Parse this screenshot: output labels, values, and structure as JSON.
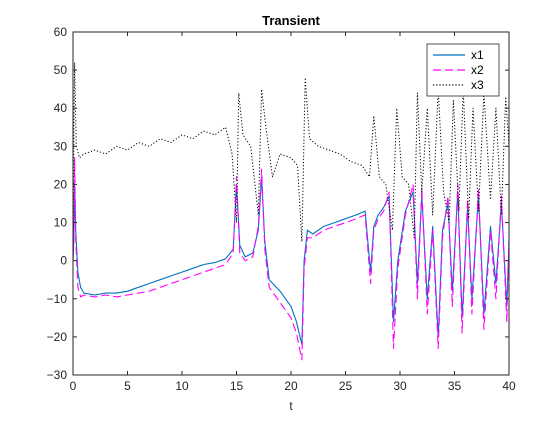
{
  "figure": {
    "background": "#ffffff"
  },
  "chart_data": {
    "type": "line",
    "title": "Transient",
    "xlabel": "t",
    "ylabel": "",
    "xlim": [
      0,
      40
    ],
    "ylim": [
      -30,
      60
    ],
    "xticks": [
      "0",
      "5",
      "10",
      "15",
      "20",
      "25",
      "30",
      "35",
      "40"
    ],
    "yticks": [
      "−30",
      "−20",
      "−10",
      "0",
      "10",
      "20",
      "30",
      "40",
      "50",
      "60"
    ],
    "grid": false,
    "legend_position": "top-right",
    "series": [
      {
        "name": "x1",
        "color": "#0072bd",
        "dash": "solid",
        "points": [
          [
            0.0,
            0
          ],
          [
            0.08,
            6
          ],
          [
            0.15,
            20
          ],
          [
            0.25,
            8
          ],
          [
            0.45,
            -3
          ],
          [
            0.7,
            -7
          ],
          [
            1.0,
            -8.5
          ],
          [
            2,
            -9
          ],
          [
            3,
            -8.5
          ],
          [
            4,
            -8.5
          ],
          [
            5,
            -8
          ],
          [
            6,
            -7
          ],
          [
            7,
            -6
          ],
          [
            8,
            -5
          ],
          [
            9,
            -4
          ],
          [
            10,
            -3
          ],
          [
            11,
            -2
          ],
          [
            12,
            -1
          ],
          [
            13,
            -0.5
          ],
          [
            14,
            0.5
          ],
          [
            14.7,
            3
          ],
          [
            15.0,
            20
          ],
          [
            15.3,
            4
          ],
          [
            15.8,
            1
          ],
          [
            16.5,
            2
          ],
          [
            17.0,
            8
          ],
          [
            17.3,
            22
          ],
          [
            17.6,
            5
          ],
          [
            18.0,
            -5
          ],
          [
            19,
            -8
          ],
          [
            20,
            -12
          ],
          [
            20.5,
            -16
          ],
          [
            21.0,
            -22
          ],
          [
            21.2,
            0
          ],
          [
            21.5,
            8
          ],
          [
            22,
            7
          ],
          [
            23,
            9
          ],
          [
            24,
            10
          ],
          [
            25,
            11
          ],
          [
            26,
            12
          ],
          [
            26.8,
            13
          ],
          [
            27.3,
            -3
          ],
          [
            27.6,
            9
          ],
          [
            28,
            12
          ],
          [
            28.5,
            14
          ],
          [
            29.0,
            17
          ],
          [
            29.4,
            -16
          ],
          [
            29.8,
            0
          ],
          [
            30.5,
            13
          ],
          [
            31.2,
            18
          ],
          [
            31.6,
            -6
          ],
          [
            32.0,
            17
          ],
          [
            32.5,
            -10
          ],
          [
            33.0,
            9
          ],
          [
            33.5,
            -20
          ],
          [
            33.9,
            8
          ],
          [
            34.4,
            15
          ],
          [
            34.8,
            -8
          ],
          [
            35.3,
            18
          ],
          [
            35.7,
            -15
          ],
          [
            36.2,
            14
          ],
          [
            36.6,
            -10
          ],
          [
            37.2,
            17
          ],
          [
            37.7,
            -14
          ],
          [
            38.3,
            9
          ],
          [
            38.8,
            -6
          ],
          [
            39.3,
            15
          ],
          [
            39.8,
            -12
          ],
          [
            40.0,
            5
          ]
        ]
      },
      {
        "name": "x2",
        "color": "#ff00ff",
        "dash": "dashed",
        "points": [
          [
            0.0,
            0
          ],
          [
            0.08,
            8
          ],
          [
            0.15,
            27
          ],
          [
            0.25,
            6
          ],
          [
            0.45,
            -7
          ],
          [
            0.7,
            -9.5
          ],
          [
            1.0,
            -9
          ],
          [
            2,
            -9.5
          ],
          [
            3,
            -9
          ],
          [
            4,
            -9.5
          ],
          [
            5,
            -9
          ],
          [
            6,
            -8.5
          ],
          [
            7,
            -8
          ],
          [
            8,
            -7
          ],
          [
            9,
            -6
          ],
          [
            10,
            -5
          ],
          [
            11,
            -4
          ],
          [
            12,
            -3
          ],
          [
            13,
            -2
          ],
          [
            14,
            -1
          ],
          [
            14.7,
            2
          ],
          [
            15.0,
            22
          ],
          [
            15.3,
            2
          ],
          [
            15.8,
            0
          ],
          [
            16.5,
            1
          ],
          [
            17.0,
            9
          ],
          [
            17.3,
            24
          ],
          [
            17.6,
            3
          ],
          [
            18.0,
            -7
          ],
          [
            19,
            -11
          ],
          [
            20,
            -15
          ],
          [
            20.5,
            -19
          ],
          [
            21.0,
            -26
          ],
          [
            21.2,
            -2
          ],
          [
            21.5,
            6
          ],
          [
            22,
            6
          ],
          [
            23,
            8
          ],
          [
            24,
            9
          ],
          [
            25,
            10
          ],
          [
            26,
            11
          ],
          [
            26.8,
            12
          ],
          [
            27.3,
            -6
          ],
          [
            27.6,
            8
          ],
          [
            28,
            11
          ],
          [
            28.5,
            13
          ],
          [
            29.0,
            18
          ],
          [
            29.4,
            -23
          ],
          [
            29.8,
            -2
          ],
          [
            30.5,
            12
          ],
          [
            31.2,
            20
          ],
          [
            31.6,
            -10
          ],
          [
            32.0,
            19
          ],
          [
            32.5,
            -14
          ],
          [
            33.0,
            8
          ],
          [
            33.5,
            -23
          ],
          [
            33.9,
            6
          ],
          [
            34.4,
            17
          ],
          [
            34.8,
            -12
          ],
          [
            35.3,
            20
          ],
          [
            35.7,
            -19
          ],
          [
            36.2,
            16
          ],
          [
            36.6,
            -14
          ],
          [
            37.2,
            19
          ],
          [
            37.7,
            -18
          ],
          [
            38.3,
            8
          ],
          [
            38.8,
            -10
          ],
          [
            39.3,
            17
          ],
          [
            39.8,
            -16
          ],
          [
            40.0,
            6
          ]
        ]
      },
      {
        "name": "x3",
        "color": "#000000",
        "dash": "dotted",
        "points": [
          [
            0.0,
            0
          ],
          [
            0.08,
            35
          ],
          [
            0.15,
            52
          ],
          [
            0.3,
            30
          ],
          [
            0.6,
            27
          ],
          [
            1,
            28
          ],
          [
            2,
            29
          ],
          [
            3,
            28
          ],
          [
            4,
            30
          ],
          [
            5,
            29
          ],
          [
            6,
            31
          ],
          [
            7,
            30
          ],
          [
            8,
            32
          ],
          [
            9,
            31
          ],
          [
            10,
            33
          ],
          [
            11,
            32
          ],
          [
            12,
            34
          ],
          [
            13,
            33
          ],
          [
            14,
            35
          ],
          [
            14.6,
            28
          ],
          [
            15.0,
            10
          ],
          [
            15.2,
            44
          ],
          [
            15.6,
            33
          ],
          [
            16.3,
            30
          ],
          [
            17.0,
            12
          ],
          [
            17.3,
            45
          ],
          [
            17.7,
            35
          ],
          [
            18.3,
            22
          ],
          [
            19,
            28
          ],
          [
            20,
            27
          ],
          [
            20.6,
            25
          ],
          [
            21.0,
            5
          ],
          [
            21.3,
            48
          ],
          [
            21.7,
            32
          ],
          [
            22.5,
            30
          ],
          [
            23.5,
            29
          ],
          [
            24.5,
            28
          ],
          [
            25.5,
            26
          ],
          [
            26.5,
            25
          ],
          [
            27.2,
            22
          ],
          [
            27.6,
            38
          ],
          [
            28.1,
            22
          ],
          [
            28.7,
            20
          ],
          [
            29.3,
            8
          ],
          [
            29.7,
            40
          ],
          [
            30.2,
            22
          ],
          [
            30.8,
            20
          ],
          [
            31.3,
            6
          ],
          [
            31.6,
            44
          ],
          [
            32.0,
            18
          ],
          [
            32.5,
            40
          ],
          [
            33.0,
            12
          ],
          [
            33.5,
            45
          ],
          [
            34.0,
            18
          ],
          [
            34.5,
            10
          ],
          [
            34.9,
            42
          ],
          [
            35.4,
            13
          ],
          [
            35.8,
            45
          ],
          [
            36.3,
            11
          ],
          [
            36.7,
            40
          ],
          [
            37.2,
            13
          ],
          [
            37.7,
            44
          ],
          [
            38.3,
            16
          ],
          [
            38.8,
            40
          ],
          [
            39.3,
            12
          ],
          [
            39.7,
            43
          ],
          [
            40.0,
            30
          ]
        ]
      }
    ]
  }
}
